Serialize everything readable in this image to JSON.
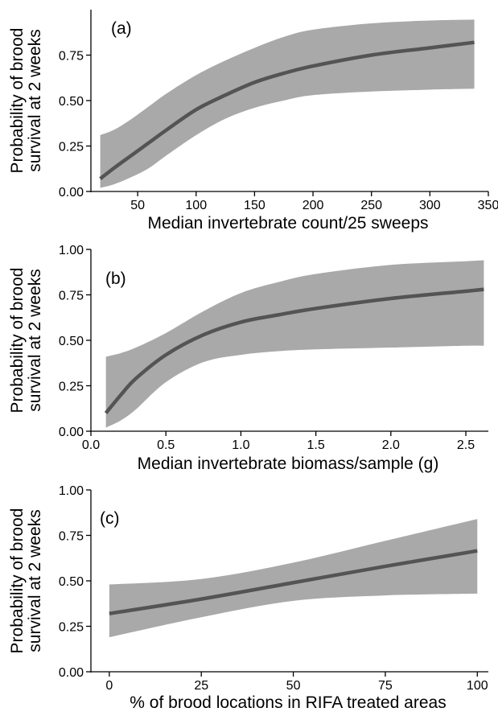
{
  "colors": {
    "band": "#a9a9a9",
    "line": "#545454"
  },
  "chart_data": [
    {
      "type": "line",
      "panel_label": "(a)",
      "xlabel": "Median invertebrate count/25 sweeps",
      "ylabel": [
        "Probability of brood",
        "survival at 2 weeks"
      ],
      "xlim": [
        10,
        350
      ],
      "ylim": [
        0,
        1
      ],
      "xticks": [
        50,
        100,
        150,
        200,
        250,
        300,
        350
      ],
      "yticks": [
        0,
        0.25,
        0.5,
        0.75
      ],
      "ytick_labels": [
        "0.00",
        "0.25",
        "0.50",
        "0.75"
      ],
      "x": [
        18,
        30,
        45,
        60,
        75,
        100,
        125,
        150,
        175,
        200,
        250,
        300,
        338
      ],
      "fit": [
        0.07,
        0.13,
        0.2,
        0.27,
        0.34,
        0.45,
        0.53,
        0.6,
        0.65,
        0.69,
        0.75,
        0.79,
        0.82
      ],
      "lower": [
        0.02,
        0.04,
        0.08,
        0.13,
        0.2,
        0.31,
        0.4,
        0.46,
        0.5,
        0.53,
        0.55,
        0.56,
        0.565
      ],
      "upper": [
        0.31,
        0.34,
        0.4,
        0.47,
        0.54,
        0.64,
        0.72,
        0.79,
        0.85,
        0.89,
        0.925,
        0.94,
        0.945
      ]
    },
    {
      "type": "line",
      "panel_label": "(b)",
      "xlabel": "Median invertebrate biomass/sample (g)",
      "ylabel": [
        "Probability of brood",
        "survival at 2 weeks"
      ],
      "xlim": [
        0,
        2.65
      ],
      "ylim": [
        0,
        1
      ],
      "xticks": [
        0,
        0.5,
        1,
        1.5,
        2,
        2.5
      ],
      "xtick_labels": [
        "0.0",
        "0.5",
        "1.0",
        "1.5",
        "2.0",
        "2.5"
      ],
      "yticks": [
        0,
        0.25,
        0.5,
        0.75,
        1
      ],
      "ytick_labels": [
        "0.00",
        "0.25",
        "0.50",
        "0.75",
        "1.00"
      ],
      "x": [
        0.1,
        0.2,
        0.3,
        0.5,
        0.75,
        1.0,
        1.25,
        1.5,
        2.0,
        2.5,
        2.62
      ],
      "fit": [
        0.1,
        0.2,
        0.29,
        0.42,
        0.53,
        0.6,
        0.64,
        0.675,
        0.73,
        0.77,
        0.78
      ],
      "lower": [
        0.02,
        0.06,
        0.12,
        0.27,
        0.38,
        0.42,
        0.44,
        0.45,
        0.46,
        0.47,
        0.47
      ],
      "upper": [
        0.41,
        0.43,
        0.46,
        0.54,
        0.66,
        0.76,
        0.82,
        0.865,
        0.915,
        0.935,
        0.94
      ]
    },
    {
      "type": "line",
      "panel_label": "(c)",
      "xlabel": "% of brood locations in RIFA treated areas",
      "ylabel": [
        "Probability of brood",
        "survival at 2 weeks"
      ],
      "xlim": [
        -5,
        103
      ],
      "ylim": [
        0,
        1
      ],
      "xticks": [
        0,
        25,
        50,
        75,
        100
      ],
      "yticks": [
        0,
        0.25,
        0.5,
        0.75,
        1
      ],
      "ytick_labels": [
        "0.00",
        "0.25",
        "0.50",
        "0.75",
        "1.00"
      ],
      "x": [
        0,
        25,
        50,
        75,
        100
      ],
      "fit": [
        0.32,
        0.4,
        0.49,
        0.58,
        0.665
      ],
      "lower": [
        0.19,
        0.3,
        0.39,
        0.42,
        0.43
      ],
      "upper": [
        0.48,
        0.51,
        0.6,
        0.72,
        0.84
      ]
    }
  ]
}
